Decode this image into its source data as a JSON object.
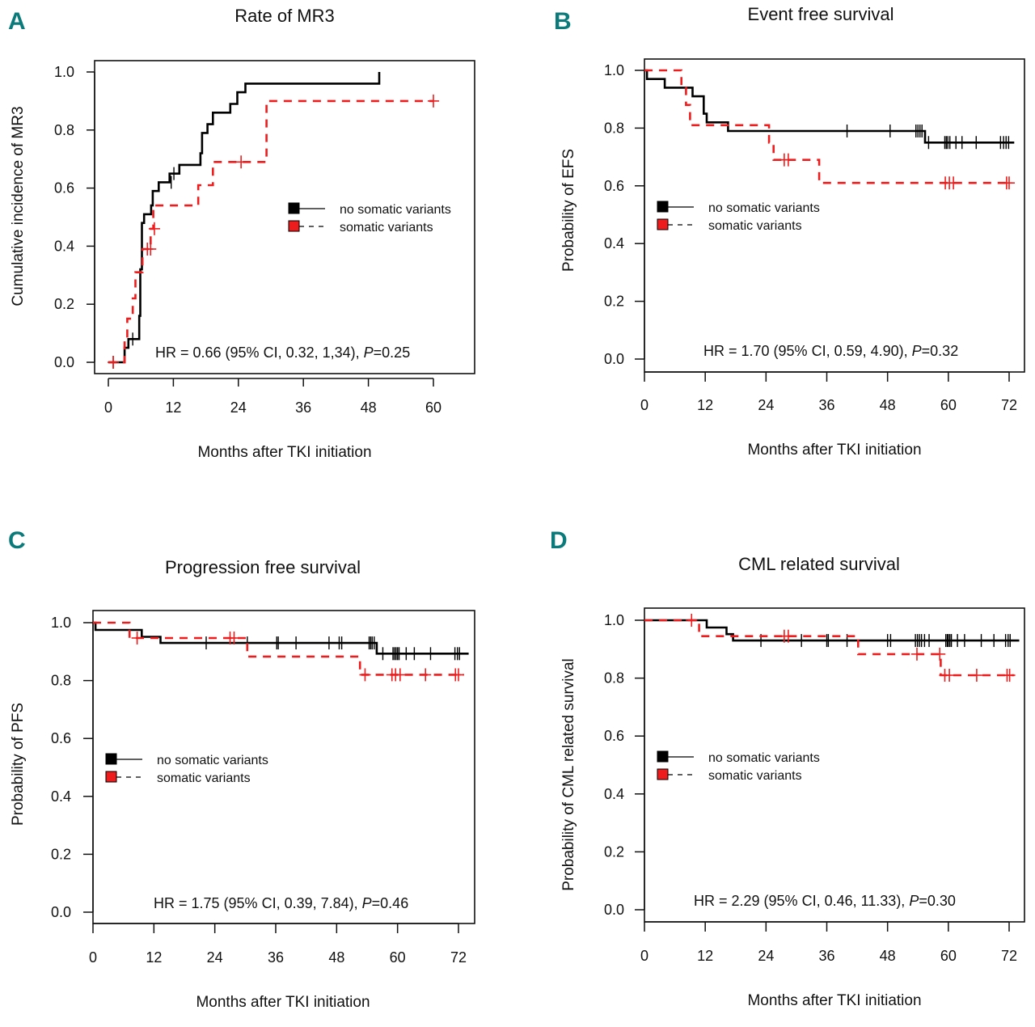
{
  "figure": {
    "panel_letter_color": "#0b7a7a",
    "series_colors": {
      "no_somatic": "#000000",
      "somatic": "#ee1c1c"
    }
  },
  "chart_data": [
    {
      "id": "A",
      "type": "line",
      "step": "post",
      "direction": "cumulative-incidence",
      "letter": "A",
      "title": "Rate of MR3",
      "xlabel": "Months after TKI initiation",
      "ylabel": "Cumulative incidence of MR3",
      "xlim": [
        0,
        60
      ],
      "ylim": [
        0,
        1.0
      ],
      "xticks": [
        0,
        12,
        24,
        36,
        48,
        60
      ],
      "yticks": [
        "0.0",
        "0.2",
        "0.4",
        "0.6",
        "0.8",
        "1.0"
      ],
      "legend": {
        "position": "center-right",
        "entries": [
          "no somatic variants",
          "somatic variants"
        ]
      },
      "annotation": {
        "prefix": "HR = 0.66 (95% CI, 0.32, 1,34), ",
        "p_italic": "P",
        "suffix": "=0.25"
      },
      "series": [
        {
          "name": "no somatic variants",
          "steps": [
            [
              0,
              0
            ],
            [
              3,
              0.05
            ],
            [
              3.7,
              0.08
            ],
            [
              5.5,
              0.08
            ],
            [
              5.7,
              0.16
            ],
            [
              5.9,
              0.32
            ],
            [
              6.2,
              0.48
            ],
            [
              6.6,
              0.51
            ],
            [
              7.9,
              0.54
            ],
            [
              8.2,
              0.59
            ],
            [
              9.3,
              0.62
            ],
            [
              11.3,
              0.65
            ],
            [
              13.1,
              0.68
            ],
            [
              17,
              0.72
            ],
            [
              17.3,
              0.79
            ],
            [
              18.3,
              0.82
            ],
            [
              19.3,
              0.86
            ],
            [
              22.5,
              0.89
            ],
            [
              23.8,
              0.93
            ],
            [
              25.3,
              0.96
            ],
            [
              50,
              0.96
            ],
            [
              50,
              1.0
            ]
          ],
          "censored": [
            [
              0.9,
              0
            ],
            [
              4.5,
              0.08
            ],
            [
              11.6,
              0.62
            ],
            [
              12.1,
              0.65
            ]
          ]
        },
        {
          "name": "somatic variants",
          "steps": [
            [
              0,
              0
            ],
            [
              3,
              0.08
            ],
            [
              3.5,
              0.15
            ],
            [
              4.5,
              0.22
            ],
            [
              5,
              0.31
            ],
            [
              6.3,
              0.39
            ],
            [
              7.8,
              0.46
            ],
            [
              8.3,
              0.54
            ],
            [
              16.6,
              0.54
            ],
            [
              16.6,
              0.61
            ],
            [
              19.3,
              0.61
            ],
            [
              19.3,
              0.69
            ],
            [
              29.2,
              0.69
            ],
            [
              29.2,
              0.9
            ],
            [
              60,
              0.9
            ]
          ],
          "censored": [
            [
              0.9,
              0
            ],
            [
              7.2,
              0.39
            ],
            [
              7.8,
              0.39
            ],
            [
              8.5,
              0.46
            ],
            [
              24.5,
              0.69
            ],
            [
              60,
              0.9
            ]
          ]
        }
      ]
    },
    {
      "id": "B",
      "type": "line",
      "step": "post",
      "direction": "survival",
      "letter": "B",
      "title": "Event free survival",
      "xlabel": "Months after TKI initiation",
      "ylabel": "Probability of EFS",
      "xlim": [
        0,
        72
      ],
      "ylim": [
        0,
        1.0
      ],
      "xticks": [
        0,
        12,
        24,
        36,
        48,
        60,
        72
      ],
      "yticks": [
        "0.0",
        "0.2",
        "0.4",
        "0.6",
        "0.8",
        "1.0"
      ],
      "legend": {
        "position": "center-left",
        "entries": [
          "no somatic variants",
          "somatic variants"
        ]
      },
      "annotation": {
        "prefix": "HR = 1.70 (95% CI, 0.59, 4.90), ",
        "p_italic": "P",
        "suffix": "=0.32"
      },
      "series": [
        {
          "name": "no somatic variants",
          "steps": [
            [
              0,
              1.0
            ],
            [
              0.5,
              0.97
            ],
            [
              4,
              0.94
            ],
            [
              9.5,
              0.91
            ],
            [
              11.7,
              0.85
            ],
            [
              12.3,
              0.82
            ],
            [
              16.5,
              0.79
            ],
            [
              55.4,
              0.79
            ],
            [
              55.4,
              0.75
            ],
            [
              73,
              0.75
            ]
          ],
          "censored": [
            [
              40,
              0.79
            ],
            [
              48.5,
              0.79
            ],
            [
              53.6,
              0.79
            ],
            [
              54,
              0.79
            ],
            [
              54.4,
              0.79
            ],
            [
              54.8,
              0.79
            ],
            [
              56.1,
              0.75
            ],
            [
              59.3,
              0.75
            ],
            [
              59.6,
              0.75
            ],
            [
              59.9,
              0.75
            ],
            [
              60.3,
              0.75
            ],
            [
              61.5,
              0.75
            ],
            [
              62.7,
              0.75
            ],
            [
              65.5,
              0.75
            ],
            [
              70.3,
              0.75
            ],
            [
              70.9,
              0.75
            ],
            [
              71.4,
              0.75
            ],
            [
              71.9,
              0.75
            ]
          ],
          "legend_marker": "square"
        },
        {
          "name": "somatic variants",
          "steps": [
            [
              0,
              1.0
            ],
            [
              7.3,
              1.0
            ],
            [
              7.3,
              0.94
            ],
            [
              8.2,
              0.88
            ],
            [
              9,
              0.81
            ],
            [
              24.6,
              0.81
            ],
            [
              24.6,
              0.75
            ],
            [
              25.5,
              0.69
            ],
            [
              34.5,
              0.69
            ],
            [
              34.5,
              0.61
            ],
            [
              72,
              0.61
            ]
          ],
          "censored": [
            [
              27.6,
              0.69
            ],
            [
              28.4,
              0.69
            ],
            [
              59.4,
              0.61
            ],
            [
              60.2,
              0.61
            ],
            [
              61,
              0.61
            ],
            [
              71.5,
              0.61
            ],
            [
              72,
              0.61
            ]
          ]
        }
      ]
    },
    {
      "id": "C",
      "type": "line",
      "step": "post",
      "direction": "survival",
      "letter": "C",
      "title": "Progression free survival",
      "xlabel": "Months after TKI initiation",
      "ylabel": "Probability of PFS",
      "xlim": [
        0,
        72
      ],
      "ylim": [
        0,
        1.0
      ],
      "xticks": [
        0,
        12,
        24,
        36,
        48,
        60,
        72
      ],
      "yticks": [
        "0.0",
        "0.2",
        "0.4",
        "0.6",
        "0.8",
        "1.0"
      ],
      "legend": {
        "position": "center-left",
        "entries": [
          "no somatic variants",
          "somatic variants"
        ]
      },
      "annotation": {
        "prefix": "HR = 1.75 (95% CI, 0.39, 7.84), ",
        "p_italic": "P",
        "suffix": "=0.46"
      },
      "series": [
        {
          "name": "no somatic variants",
          "steps": [
            [
              0,
              1.0
            ],
            [
              0.5,
              0.975
            ],
            [
              9.6,
              0.975
            ],
            [
              9.6,
              0.951
            ],
            [
              13.3,
              0.951
            ],
            [
              13.3,
              0.93
            ],
            [
              55.9,
              0.93
            ],
            [
              55.9,
              0.893
            ],
            [
              74,
              0.893
            ]
          ],
          "censored": [
            [
              22.3,
              0.93
            ],
            [
              30.4,
              0.93
            ],
            [
              36.2,
              0.93
            ],
            [
              36.5,
              0.93
            ],
            [
              40,
              0.93
            ],
            [
              46.5,
              0.93
            ],
            [
              48.5,
              0.93
            ],
            [
              49,
              0.93
            ],
            [
              54.4,
              0.93
            ],
            [
              54.7,
              0.93
            ],
            [
              55,
              0.93
            ],
            [
              55.4,
              0.93
            ],
            [
              57.1,
              0.893
            ],
            [
              59.1,
              0.893
            ],
            [
              59.4,
              0.893
            ],
            [
              59.7,
              0.893
            ],
            [
              60,
              0.893
            ],
            [
              60.3,
              0.893
            ],
            [
              61.7,
              0.893
            ],
            [
              63.3,
              0.893
            ],
            [
              66.5,
              0.893
            ],
            [
              71.3,
              0.893
            ],
            [
              71.8,
              0.893
            ],
            [
              72.2,
              0.893
            ]
          ]
        },
        {
          "name": "somatic variants",
          "steps": [
            [
              0,
              1.0
            ],
            [
              7.2,
              1.0
            ],
            [
              7.2,
              0.947
            ],
            [
              30.4,
              0.947
            ],
            [
              30.4,
              0.883
            ],
            [
              52.6,
              0.883
            ],
            [
              52.6,
              0.82
            ],
            [
              73,
              0.82
            ]
          ],
          "censored": [
            [
              8.7,
              0.947
            ],
            [
              27,
              0.947
            ],
            [
              27.8,
              0.947
            ],
            [
              53.6,
              0.82
            ],
            [
              58.9,
              0.82
            ],
            [
              59.6,
              0.82
            ],
            [
              60.5,
              0.82
            ],
            [
              65.5,
              0.82
            ],
            [
              71.4,
              0.82
            ],
            [
              72,
              0.82
            ]
          ]
        }
      ]
    },
    {
      "id": "D",
      "type": "line",
      "step": "post",
      "direction": "survival",
      "letter": "D",
      "title": "CML related survival",
      "xlabel": "Months after TKI initiation",
      "ylabel": "Probability of CML related survival",
      "xlim": [
        0,
        72
      ],
      "ylim": [
        0,
        1.0
      ],
      "xticks": [
        0,
        12,
        24,
        36,
        48,
        60,
        72
      ],
      "yticks": [
        "0.0",
        "0.2",
        "0.4",
        "0.6",
        "0.8",
        "1.0"
      ],
      "legend": {
        "position": "center-left",
        "entries": [
          "no somatic variants",
          "somatic variants"
        ]
      },
      "annotation": {
        "prefix": "HR = 2.29 (95% CI, 0.46, 11.33), ",
        "p_italic": "P",
        "suffix": "=0.30"
      },
      "series": [
        {
          "name": "no somatic variants",
          "steps": [
            [
              0,
              1.0
            ],
            [
              12.3,
              1.0
            ],
            [
              12.3,
              0.975
            ],
            [
              16.2,
              0.975
            ],
            [
              16.2,
              0.952
            ],
            [
              17.5,
              0.952
            ],
            [
              17.5,
              0.93
            ],
            [
              74,
              0.93
            ]
          ],
          "censored": [
            [
              23,
              0.93
            ],
            [
              31,
              0.93
            ],
            [
              36,
              0.93
            ],
            [
              36.3,
              0.93
            ],
            [
              40,
              0.93
            ],
            [
              48,
              0.93
            ],
            [
              48.6,
              0.93
            ],
            [
              53.5,
              0.93
            ],
            [
              53.9,
              0.93
            ],
            [
              54.3,
              0.93
            ],
            [
              54.7,
              0.93
            ],
            [
              55.3,
              0.93
            ],
            [
              56.2,
              0.93
            ],
            [
              59.5,
              0.93
            ],
            [
              59.8,
              0.93
            ],
            [
              60,
              0.93
            ],
            [
              60.3,
              0.93
            ],
            [
              60.6,
              0.93
            ],
            [
              61.8,
              0.93
            ],
            [
              63.2,
              0.93
            ],
            [
              66.5,
              0.93
            ],
            [
              69,
              0.93
            ],
            [
              71.3,
              0.93
            ],
            [
              71.8,
              0.93
            ],
            [
              72.2,
              0.93
            ]
          ]
        },
        {
          "name": "somatic variants",
          "steps": [
            [
              0,
              1.0
            ],
            [
              10.8,
              1.0
            ],
            [
              10.8,
              0.945
            ],
            [
              42.2,
              0.945
            ],
            [
              42.2,
              0.883
            ],
            [
              58.5,
              0.883
            ],
            [
              58.5,
              0.81
            ],
            [
              73,
              0.81
            ]
          ],
          "censored": [
            [
              9.3,
              1.0
            ],
            [
              27.6,
              0.945
            ],
            [
              28.4,
              0.945
            ],
            [
              53.8,
              0.883
            ],
            [
              58.3,
              0.883
            ],
            [
              59.3,
              0.81
            ],
            [
              60.2,
              0.81
            ],
            [
              65.6,
              0.81
            ],
            [
              71.6,
              0.81
            ],
            [
              72.1,
              0.81
            ]
          ]
        }
      ]
    }
  ]
}
